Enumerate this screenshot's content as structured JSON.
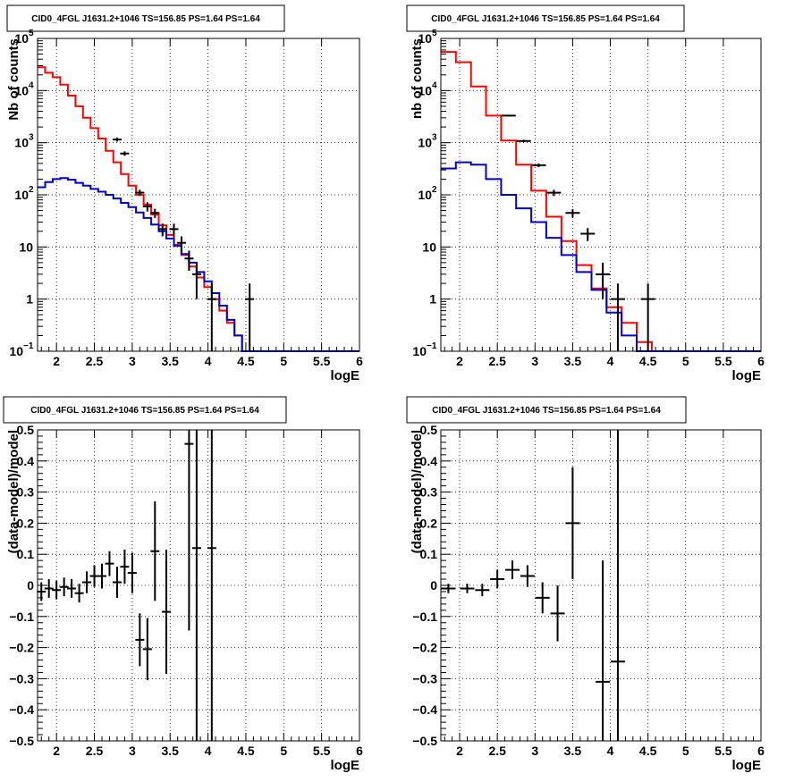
{
  "colors": {
    "data": "#000000",
    "total_model": "#ff0000",
    "source_model": "#0000cc",
    "grid": "#000000"
  },
  "chart_data": [
    {
      "type": "line",
      "title": "CID0_4FGL J1631.2+1046 TS=156.85 PS=1.64 PS=1.64",
      "xlabel": "logE",
      "ylabel": "Nb of counts",
      "xlim": [
        1.75,
        6.0
      ],
      "ylim": [
        0.1,
        100000
      ],
      "yscale": "log",
      "grid": true,
      "xticks": [
        "2",
        "2.5",
        "3",
        "3.5",
        "4",
        "4.5",
        "5",
        "5.5",
        "6"
      ],
      "yticks": [
        "10^-1",
        "1",
        "10",
        "10^2",
        "10^3",
        "10^4",
        "10^5"
      ],
      "bin_edges": [
        1.75,
        1.85,
        1.95,
        2.05,
        2.15,
        2.25,
        2.35,
        2.45,
        2.55,
        2.65,
        2.75,
        2.85,
        2.95,
        3.05,
        3.15,
        3.25,
        3.35,
        3.45,
        3.55,
        3.65,
        3.75,
        3.85,
        3.95,
        4.05,
        4.15,
        4.25,
        4.35,
        4.45,
        4.55,
        4.65,
        4.75,
        4.85,
        4.95,
        5.05,
        5.15,
        5.25,
        5.35,
        5.45,
        5.55,
        5.65,
        5.75,
        5.85,
        5.95,
        6.0
      ],
      "series": [
        {
          "role": "total_model",
          "values": [
            28000,
            22000,
            18000,
            13000,
            8000,
            5000,
            3000,
            1900,
            1200,
            700,
            420,
            250,
            150,
            100,
            65,
            42,
            26,
            17,
            11,
            7,
            4.2,
            2.6,
            1.7,
            1,
            0.6,
            0.35,
            0.2,
            0.1,
            0.1,
            0.1,
            0.1,
            0.1,
            0.1,
            0.1,
            0.1,
            0.1,
            0.1,
            0.1,
            0.1,
            0.1,
            0.1,
            0.1,
            0.1
          ]
        },
        {
          "role": "source_model",
          "values": [
            140,
            175,
            200,
            210,
            195,
            170,
            150,
            130,
            115,
            100,
            85,
            70,
            58,
            46,
            36,
            27,
            20,
            14.5,
            10.5,
            7.3,
            5,
            3.3,
            2.2,
            1.3,
            0.75,
            0.4,
            0.2,
            0.1,
            0.1,
            0.1,
            0.1,
            0.1,
            0.1,
            0.1,
            0.1,
            0.1,
            0.1,
            0.1,
            0.1,
            0.1,
            0.1,
            0.1,
            0.1
          ]
        }
      ],
      "points": [
        {
          "x": 2.8,
          "y": 1150,
          "yerr": 100
        },
        {
          "x": 2.9,
          "y": 620,
          "yerr": 60
        },
        {
          "x": 3.1,
          "y": 110,
          "yerr": 15
        },
        {
          "x": 3.2,
          "y": 60,
          "yerr": 12
        },
        {
          "x": 3.3,
          "y": 45,
          "yerr": 9
        },
        {
          "x": 3.4,
          "y": 22,
          "yerr": 6
        },
        {
          "x": 3.55,
          "y": 22,
          "yerr": 6
        },
        {
          "x": 3.65,
          "y": 12,
          "yerr": 4
        },
        {
          "x": 3.75,
          "y": 6,
          "yerr": 2.5
        },
        {
          "x": 3.85,
          "y": 3,
          "yerr": 2
        },
        {
          "x": 4.05,
          "y": 1,
          "yerr": 0.99
        },
        {
          "x": 4.55,
          "y": 1,
          "yerr": 0.99
        }
      ]
    },
    {
      "type": "line",
      "title": "CID0_4FGL J1631.2+1046 TS=156.85 PS=1.64 PS=1.64",
      "xlabel": "logE",
      "ylabel": "nb of counts",
      "xlim": [
        1.75,
        6.0
      ],
      "ylim": [
        0.1,
        100000
      ],
      "yscale": "log",
      "grid": true,
      "xticks": [
        "2",
        "2.5",
        "3",
        "3.5",
        "4",
        "4.5",
        "5",
        "5.5",
        "6"
      ],
      "yticks": [
        "10^-1",
        "1",
        "10",
        "10^2",
        "10^3",
        "10^4",
        "10^5"
      ],
      "bin_edges": [
        1.75,
        1.95,
        2.15,
        2.35,
        2.55,
        2.75,
        2.95,
        3.15,
        3.35,
        3.55,
        3.75,
        3.95,
        4.15,
        4.35,
        4.55,
        4.75,
        4.95,
        5.15,
        5.35,
        5.55,
        5.75,
        5.95,
        6.0
      ],
      "series": [
        {
          "role": "total_model",
          "values": [
            55000,
            35000,
            12000,
            3300,
            1100,
            380,
            120,
            38,
            13,
            4.5,
            1.6,
            0.7,
            0.35,
            0.15,
            0.1,
            0.1,
            0.1,
            0.1,
            0.1,
            0.1,
            0.1,
            0.1
          ]
        },
        {
          "role": "source_model",
          "values": [
            320,
            420,
            380,
            200,
            100,
            55,
            30,
            15,
            7,
            3.3,
            1.5,
            0.55,
            0.2,
            0.1,
            0.1,
            0.1,
            0.1,
            0.1,
            0.1,
            0.1,
            0.1,
            0.1
          ]
        }
      ],
      "points": [
        {
          "x": 2.65,
          "y": 3300,
          "yerr": 120
        },
        {
          "x": 2.85,
          "y": 1080,
          "yerr": 60
        },
        {
          "x": 3.05,
          "y": 370,
          "yerr": 30
        },
        {
          "x": 3.25,
          "y": 110,
          "yerr": 15
        },
        {
          "x": 3.5,
          "y": 45,
          "yerr": 8
        },
        {
          "x": 3.7,
          "y": 18,
          "yerr": 5
        },
        {
          "x": 3.9,
          "y": 3,
          "yerr": 2
        },
        {
          "x": 4.1,
          "y": 1,
          "yerr": 0.99
        },
        {
          "x": 4.5,
          "y": 1,
          "yerr": 0.99
        }
      ]
    },
    {
      "type": "scatter",
      "title": "CID0_4FGL J1631.2+1046 TS=156.85 PS=1.64 PS=1.64",
      "xlabel": "logE",
      "ylabel": "(data-model)/model",
      "xlim": [
        1.75,
        6.0
      ],
      "ylim": [
        -0.5,
        0.5
      ],
      "grid": true,
      "xticks": [
        "2",
        "2.5",
        "3",
        "3.5",
        "4",
        "4.5",
        "5",
        "5.5",
        "6"
      ],
      "yticks": [
        "−0.5",
        "−0.4",
        "−0.3",
        "−0.2",
        "−0.1",
        "0",
        "0.1",
        "0.2",
        "0.3",
        "0.4",
        "0.5"
      ],
      "points": [
        {
          "x": 1.8,
          "y": -0.02,
          "yerr": 0.03
        },
        {
          "x": 1.9,
          "y": -0.01,
          "yerr": 0.03
        },
        {
          "x": 2.0,
          "y": -0.015,
          "yerr": 0.03
        },
        {
          "x": 2.1,
          "y": -0.005,
          "yerr": 0.03
        },
        {
          "x": 2.2,
          "y": -0.01,
          "yerr": 0.03
        },
        {
          "x": 2.3,
          "y": -0.025,
          "yerr": 0.03
        },
        {
          "x": 2.4,
          "y": 0.01,
          "yerr": 0.035
        },
        {
          "x": 2.5,
          "y": 0.03,
          "yerr": 0.035
        },
        {
          "x": 2.6,
          "y": 0.03,
          "yerr": 0.04
        },
        {
          "x": 2.7,
          "y": 0.07,
          "yerr": 0.04
        },
        {
          "x": 2.8,
          "y": 0.01,
          "yerr": 0.05
        },
        {
          "x": 2.9,
          "y": 0.06,
          "yerr": 0.055
        },
        {
          "x": 3.0,
          "y": 0.04,
          "yerr": 0.065
        },
        {
          "x": 3.1,
          "y": -0.175,
          "yerr": 0.085
        },
        {
          "x": 3.2,
          "y": -0.205,
          "yerr": 0.1
        },
        {
          "x": 3.3,
          "y": 0.11,
          "yerr": 0.16
        },
        {
          "x": 3.45,
          "y": -0.085,
          "yerr": 0.2
        },
        {
          "x": 3.75,
          "y": 0.455,
          "yerr": 0.6
        },
        {
          "x": 3.85,
          "y": 0.12,
          "yerr": 1.0
        },
        {
          "x": 4.05,
          "y": 0.12,
          "yerr": 1.0
        }
      ]
    },
    {
      "type": "scatter",
      "title": "CID0_4FGL J1631.2+1046 TS=156.85 PS=1.64 PS=1.64",
      "xlabel": "logE",
      "ylabel": "(data-model)/model",
      "xlim": [
        1.75,
        6.0
      ],
      "ylim": [
        -0.5,
        0.5
      ],
      "grid": true,
      "xticks": [
        "2",
        "2.5",
        "3",
        "3.5",
        "4",
        "4.5",
        "5",
        "5.5",
        "6"
      ],
      "yticks": [
        "−0.5",
        "−0.4",
        "−0.3",
        "−0.2",
        "−0.1",
        "0",
        "0.1",
        "0.2",
        "0.3",
        "0.4",
        "0.5"
      ],
      "points": [
        {
          "x": 1.85,
          "y": -0.01,
          "yerr": 0.015
        },
        {
          "x": 2.1,
          "y": -0.01,
          "yerr": 0.015
        },
        {
          "x": 2.3,
          "y": -0.015,
          "yerr": 0.02
        },
        {
          "x": 2.5,
          "y": 0.02,
          "yerr": 0.03
        },
        {
          "x": 2.7,
          "y": 0.05,
          "yerr": 0.03
        },
        {
          "x": 2.9,
          "y": 0.03,
          "yerr": 0.035
        },
        {
          "x": 3.1,
          "y": -0.04,
          "yerr": 0.05
        },
        {
          "x": 3.3,
          "y": -0.09,
          "yerr": 0.09
        },
        {
          "x": 3.5,
          "y": 0.2,
          "yerr": 0.18
        },
        {
          "x": 3.9,
          "y": -0.31,
          "yerr": 0.39
        },
        {
          "x": 4.1,
          "y": -0.245,
          "yerr": 1.0
        }
      ]
    }
  ]
}
